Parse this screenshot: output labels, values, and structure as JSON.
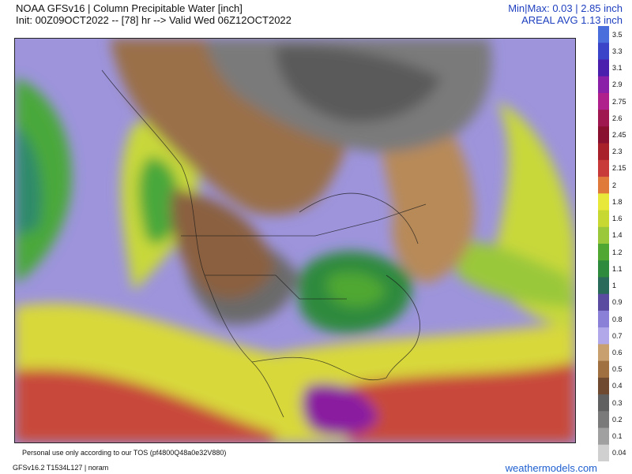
{
  "header": {
    "title": "NOAA GFSv16 | Column Precipitable Water [inch]",
    "subtitle": "Init: 00Z09OCT2022 -- [78] hr --> Valid Wed 06Z12OCT2022",
    "minmax": "Min|Max: 0.03 | 2.85 inch",
    "areal_avg": "AREAL AVG 1.13 inch"
  },
  "colorbar": {
    "labels": [
      "3.5",
      "3.3",
      "3.1",
      "2.9",
      "2.75",
      "2.6",
      "2.45",
      "2.3",
      "2.15",
      "2",
      "1.8",
      "1.6",
      "1.4",
      "1.2",
      "1.1",
      "1",
      "0.9",
      "0.8",
      "0.7",
      "0.6",
      "0.5",
      "0.4",
      "0.3",
      "0.2",
      "0.1",
      "0.04"
    ],
    "colors": [
      "#4a6fdc",
      "#3a44c8",
      "#4a1fae",
      "#8a1fa8",
      "#b0208c",
      "#a01850",
      "#8a1030",
      "#a8202a",
      "#c83a3a",
      "#e07a3a",
      "#e8e83a",
      "#c8d832",
      "#9ac83a",
      "#50a832",
      "#2e8a3c",
      "#2a6a5a",
      "#5a4aa0",
      "#8a80d8",
      "#b0a8e8",
      "#c8a070",
      "#a07040",
      "#704a30",
      "#606060",
      "#7a7a7a",
      "#a0a0a0",
      "#d0d0d0"
    ]
  },
  "footer": {
    "tos": "Personal use only according to our TOS (pf4800Q48a0e32V880)",
    "id": "GFSv16.2 T1534L127 | noram",
    "brand": "weathermodels.com"
  }
}
